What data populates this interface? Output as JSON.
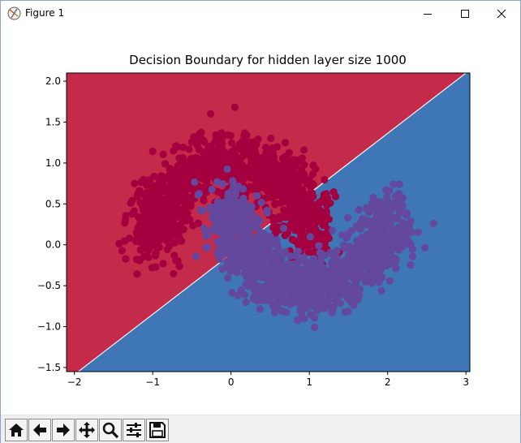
{
  "window": {
    "title": "Figure 1",
    "title_icon": "matplotlib-figure-icon",
    "controls": [
      "minimize-icon",
      "maximize-icon",
      "close-icon"
    ]
  },
  "toolbar": {
    "buttons": [
      {
        "id": "home",
        "icon": "home-icon"
      },
      {
        "id": "back",
        "icon": "arrow-left-icon"
      },
      {
        "id": "forward",
        "icon": "arrow-right-icon"
      },
      {
        "id": "pan",
        "icon": "move-icon"
      },
      {
        "id": "zoom",
        "icon": "magnifier-icon"
      },
      {
        "id": "configure",
        "icon": "sliders-icon"
      },
      {
        "id": "save",
        "icon": "floppy-disk-icon"
      }
    ]
  },
  "colors": {
    "region_class0": "#c42a4a",
    "region_class1": "#3e76b6",
    "points_class0": "#a4003f",
    "points_class1": "#63489d"
  },
  "chart_data": {
    "type": "scatter",
    "title": "Decision Boundary for hidden layer size 1000",
    "xlabel": "",
    "ylabel": "",
    "xlim": [
      -2.1,
      3.05
    ],
    "ylim": [
      -1.55,
      2.1
    ],
    "x_ticks": [
      -2,
      -1,
      0,
      1,
      2,
      3
    ],
    "x_tick_labels": [
      "−2",
      "−1",
      "0",
      "1",
      "2",
      "3"
    ],
    "y_ticks": [
      -1.5,
      -1.0,
      -0.5,
      0.0,
      0.5,
      1.0,
      1.5,
      2.0
    ],
    "y_tick_labels": [
      "−1.5",
      "−1.0",
      "−0.5",
      "0.0",
      "0.5",
      "1.0",
      "1.5",
      "2.0"
    ],
    "grid": false,
    "decision_boundary": {
      "line": [
        [
          -1.95,
          -1.55
        ],
        [
          3.0,
          2.1
        ]
      ],
      "upper_region_class": 0,
      "lower_region_class": 1
    },
    "series": [
      {
        "class": 0,
        "shape": "upper-moon",
        "center": [
          0.0,
          0.0
        ],
        "radius": 1.0,
        "noise": 0.18,
        "count": 1200
      },
      {
        "class": 1,
        "shape": "lower-moon",
        "center": [
          1.0,
          0.5
        ],
        "radius": 1.0,
        "noise": 0.18,
        "count": 1200
      }
    ]
  }
}
